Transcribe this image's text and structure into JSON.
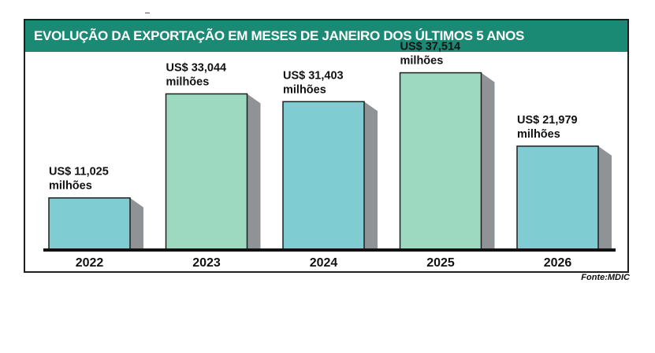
{
  "chart_data": {
    "type": "bar",
    "title": "EVOLUÇÃO DA EXPORTAÇÃO EM MESES DE JANEIRO DOS ÚLTIMOS 5 ANOS",
    "categories": [
      "2022",
      "2023",
      "2024",
      "2025",
      "2026"
    ],
    "values": [
      11.025,
      33.044,
      31.403,
      37.514,
      21.979
    ],
    "value_labels": [
      [
        "US$ 11,025",
        "milhões"
      ],
      [
        "US$ 33,044",
        "milhões"
      ],
      [
        "US$ 31,403",
        "milhões"
      ],
      [
        "US$ 37,514",
        "milhões"
      ],
      [
        "US$ 21,979",
        "milhões"
      ]
    ],
    "unit": "US$ milhões",
    "ylim": [
      0,
      42.1
    ],
    "xlabel": "",
    "ylabel": "",
    "grid": false,
    "colors": [
      "#7fcdd3",
      "#9dd8c0",
      "#7fcdd3",
      "#9dd8c0",
      "#7fcdd3"
    ],
    "shadow_color": "#8f9396",
    "source": "Fonte:MDIC"
  },
  "title_bar_color": "#1a8a74"
}
